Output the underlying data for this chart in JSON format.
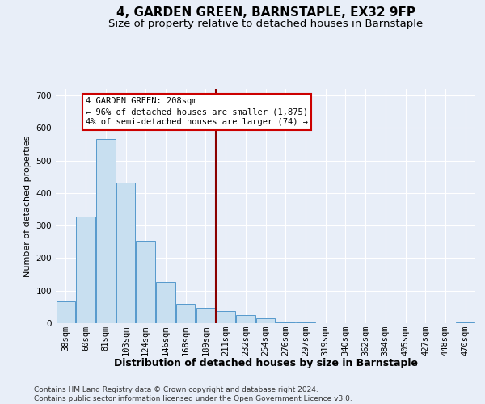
{
  "title": "4, GARDEN GREEN, BARNSTAPLE, EX32 9FP",
  "subtitle": "Size of property relative to detached houses in Barnstaple",
  "xlabel": "Distribution of detached houses by size in Barnstaple",
  "ylabel": "Number of detached properties",
  "categories": [
    "38sqm",
    "60sqm",
    "81sqm",
    "103sqm",
    "124sqm",
    "146sqm",
    "168sqm",
    "189sqm",
    "211sqm",
    "232sqm",
    "254sqm",
    "276sqm",
    "297sqm",
    "319sqm",
    "340sqm",
    "362sqm",
    "384sqm",
    "405sqm",
    "427sqm",
    "448sqm",
    "470sqm"
  ],
  "values": [
    68,
    328,
    567,
    432,
    253,
    126,
    60,
    47,
    38,
    25,
    15,
    3,
    2,
    0,
    0,
    0,
    0,
    0,
    0,
    0,
    2
  ],
  "bar_color": "#c8dff0",
  "bar_edge_color": "#5599cc",
  "vline_index": 8,
  "annotation_line0": "4 GARDEN GREEN: 208sqm",
  "annotation_line1": "← 96% of detached houses are smaller (1,875)",
  "annotation_line2": "4% of semi-detached houses are larger (74) →",
  "vline_color": "#8b0000",
  "annotation_edge_color": "#cc0000",
  "annotation_bg": "#ffffff",
  "ylim": [
    0,
    720
  ],
  "yticks": [
    0,
    100,
    200,
    300,
    400,
    500,
    600,
    700
  ],
  "bg_color": "#e8eef8",
  "grid_color": "#ffffff",
  "title_fontsize": 11,
  "subtitle_fontsize": 9.5,
  "ylabel_fontsize": 8,
  "xlabel_fontsize": 9,
  "tick_fontsize": 7.5,
  "footer_fontsize": 6.5,
  "footer": "Contains HM Land Registry data © Crown copyright and database right 2024.\nContains public sector information licensed under the Open Government Licence v3.0."
}
